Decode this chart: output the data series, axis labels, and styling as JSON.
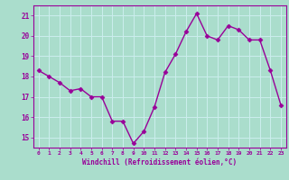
{
  "x": [
    0,
    1,
    2,
    3,
    4,
    5,
    6,
    7,
    8,
    9,
    10,
    11,
    12,
    13,
    14,
    15,
    16,
    17,
    18,
    19,
    20,
    21,
    22,
    23
  ],
  "y": [
    18.3,
    18.0,
    17.7,
    17.3,
    17.4,
    17.0,
    17.0,
    15.8,
    15.8,
    14.7,
    15.3,
    16.5,
    18.2,
    19.1,
    20.2,
    21.1,
    20.0,
    19.8,
    20.5,
    20.3,
    19.8,
    19.8,
    18.3,
    16.6
  ],
  "line_color": "#990099",
  "marker": "D",
  "marker_size": 2.5,
  "linewidth": 1.0,
  "bg_color": "#aaddcc",
  "grid_color": "#bbeeee",
  "xlabel": "Windchill (Refroidissement éolien,°C)",
  "xlabel_color": "#990099",
  "tick_color": "#990099",
  "xlim": [
    -0.5,
    23.5
  ],
  "ylim": [
    14.5,
    21.5
  ],
  "yticks": [
    15,
    16,
    17,
    18,
    19,
    20,
    21
  ],
  "xticks": [
    0,
    1,
    2,
    3,
    4,
    5,
    6,
    7,
    8,
    9,
    10,
    11,
    12,
    13,
    14,
    15,
    16,
    17,
    18,
    19,
    20,
    21,
    22,
    23
  ],
  "xtick_labels": [
    "0",
    "1",
    "2",
    "3",
    "4",
    "5",
    "6",
    "7",
    "8",
    "9",
    "10",
    "11",
    "12",
    "13",
    "14",
    "15",
    "16",
    "17",
    "18",
    "19",
    "20",
    "21",
    "22",
    "23"
  ]
}
